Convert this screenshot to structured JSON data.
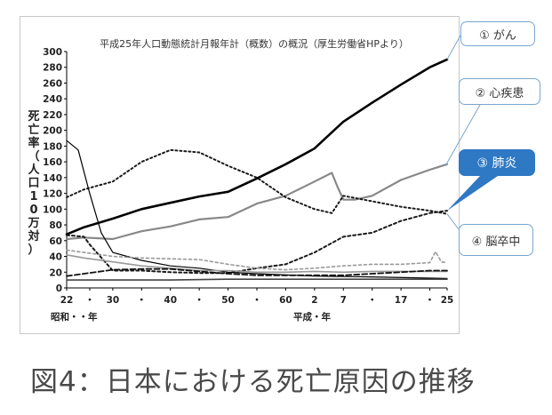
{
  "caption": "図4：日本における死亡原因の推移",
  "callouts": {
    "cancer": "① がん",
    "heart": "② 心疾患",
    "pneumonia": "③ 肺炎",
    "stroke": "④ 脳卒中"
  },
  "chart_data": {
    "type": "line",
    "title": "平成25年人口動態統計月報年計（概数）の概況（厚生労働省HPより）",
    "ylabel": "死亡率（人口10万対）",
    "ylim": [
      0,
      300
    ],
    "yticks": [
      0,
      20,
      40,
      60,
      80,
      100,
      120,
      140,
      160,
      180,
      200,
      220,
      240,
      260,
      280,
      300
    ],
    "xlim": [
      1947,
      2013
    ],
    "xticks": [
      {
        "year": 1947,
        "label": "22"
      },
      {
        "year": 1951,
        "label": "・"
      },
      {
        "year": 1955,
        "label": "30"
      },
      {
        "year": 1960,
        "label": "・"
      },
      {
        "year": 1965,
        "label": "40"
      },
      {
        "year": 1970,
        "label": "・"
      },
      {
        "year": 1975,
        "label": "50"
      },
      {
        "year": 1980,
        "label": "・"
      },
      {
        "year": 1985,
        "label": "60"
      },
      {
        "year": 1990,
        "label": "2"
      },
      {
        "year": 1995,
        "label": "7"
      },
      {
        "year": 2000,
        "label": "・"
      },
      {
        "year": 2005,
        "label": "17"
      },
      {
        "year": 2010,
        "label": "・"
      },
      {
        "year": 2013,
        "label": "25"
      }
    ],
    "xaxis_left_label": "昭和・・年",
    "xaxis_right_label": "平成・年",
    "grid": false,
    "series": [
      {
        "name": "① がん",
        "color": "#000000",
        "dash": "",
        "width": 2.6,
        "x": [
          1947,
          1950,
          1955,
          1960,
          1965,
          1970,
          1975,
          1980,
          1985,
          1990,
          1995,
          2000,
          2005,
          2010,
          2013
        ],
        "y": [
          68,
          77,
          88,
          100,
          108,
          116,
          122,
          139,
          157,
          177,
          211,
          235,
          258,
          280,
          290
        ]
      },
      {
        "name": "② 心疾患",
        "color": "#888888",
        "dash": "",
        "width": 2.2,
        "x": [
          1947,
          1950,
          1955,
          1960,
          1965,
          1970,
          1975,
          1980,
          1985,
          1990,
          1993,
          1994,
          1995,
          1997,
          2000,
          2005,
          2010,
          2013
        ],
        "y": [
          62,
          64,
          62,
          72,
          78,
          87,
          90,
          107,
          117,
          135,
          146,
          128,
          112,
          112,
          117,
          137,
          150,
          157
        ]
      },
      {
        "name": "③ 肺炎",
        "color": "#1a1a1a",
        "dash": "3 3",
        "width": 2.0,
        "x": [
          1947,
          1950,
          1951,
          1955,
          1960,
          1965,
          1970,
          1975,
          1980,
          1985,
          1990,
          1995,
          2000,
          2005,
          2010,
          2013
        ],
        "y": [
          67,
          65,
          55,
          22,
          22,
          20,
          19,
          19,
          25,
          30,
          45,
          65,
          70,
          85,
          95,
          98
        ]
      },
      {
        "name": "④ 脳卒中",
        "color": "#1a1a1a",
        "dash": "2 3",
        "width": 2.0,
        "x": [
          1947,
          1950,
          1955,
          1960,
          1965,
          1970,
          1975,
          1980,
          1985,
          1990,
          1993,
          1995,
          2000,
          2005,
          2010,
          2013
        ],
        "y": [
          115,
          125,
          135,
          160,
          175,
          172,
          155,
          140,
          115,
          100,
          95,
          117,
          110,
          103,
          98,
          94
        ]
      },
      {
        "name": "",
        "color": "#000000",
        "dash": "",
        "width": 1.2,
        "x": [
          1947,
          1949,
          1951,
          1953,
          1955,
          1960,
          1965,
          1970,
          1975,
          1980,
          1990,
          2000,
          2013
        ],
        "y": [
          187,
          175,
          120,
          70,
          45,
          35,
          28,
          25,
          20,
          18,
          15,
          14,
          12
        ]
      },
      {
        "name": "",
        "color": "#999999",
        "dash": "3 3",
        "width": 1.6,
        "x": [
          1947,
          1950,
          1955,
          1960,
          1965,
          1970,
          1975,
          1980,
          1985,
          1990,
          1995,
          2000,
          2005,
          2010,
          2011,
          2012,
          2013
        ],
        "y": [
          48,
          45,
          40,
          38,
          37,
          36,
          30,
          25,
          23,
          25,
          28,
          30,
          30,
          32,
          46,
          33,
          32
        ]
      },
      {
        "name": "",
        "color": "#999999",
        "dash": "",
        "width": 1.6,
        "x": [
          1947,
          1950,
          1955,
          1960,
          1965,
          1970,
          1975,
          1980,
          1985,
          1990,
          1995,
          2000,
          2005,
          2013
        ],
        "y": [
          42,
          38,
          33,
          28,
          25,
          22,
          22,
          20,
          20,
          21,
          20,
          21,
          21,
          21
        ]
      },
      {
        "name": "",
        "color": "#111111",
        "dash": "6 3",
        "width": 1.8,
        "x": [
          1947,
          1950,
          1955,
          1960,
          1965,
          1970,
          1975,
          1980,
          1985,
          1990,
          1995,
          2000,
          2005,
          2010,
          2013
        ],
        "y": [
          15,
          18,
          23,
          24,
          24,
          21,
          18,
          16,
          16,
          16,
          16,
          18,
          20,
          22,
          22
        ]
      },
      {
        "name": "",
        "color": "#444444",
        "dash": "",
        "width": 1.6,
        "x": [
          1947,
          1955,
          1965,
          1975,
          1985,
          1995,
          2005,
          2013
        ],
        "y": [
          10,
          10,
          10,
          11,
          11,
          11,
          11,
          11
        ]
      }
    ]
  }
}
